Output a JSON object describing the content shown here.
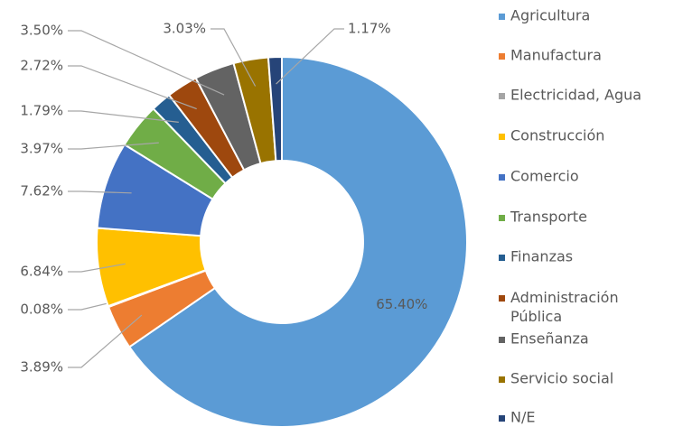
{
  "chart_data": {
    "type": "donut",
    "categories": [
      "Agricultura",
      "Manufactura",
      "Electricidad, Agua",
      "Construcción",
      "Comercio",
      "Transporte",
      "Finanzas",
      "Administración Pública",
      "Enseñanza",
      "Servicio social",
      "N/E"
    ],
    "values": [
      65.4,
      3.89,
      0.08,
      6.84,
      7.62,
      3.97,
      1.79,
      2.72,
      3.5,
      3.03,
      1.17
    ],
    "value_labels": [
      "65.40%",
      "3.89%",
      "0.08%",
      "6.84%",
      "7.62%",
      "3.97%",
      "1.79%",
      "2.72%",
      "3.50%",
      "3.03%",
      "1.17%"
    ],
    "colors": [
      "#5b9bd5",
      "#ed7d31",
      "#a5a5a5",
      "#ffc000",
      "#4472c4",
      "#70ad47",
      "#255e91",
      "#9e480e",
      "#636363",
      "#997300",
      "#264478"
    ],
    "legend": "right"
  }
}
